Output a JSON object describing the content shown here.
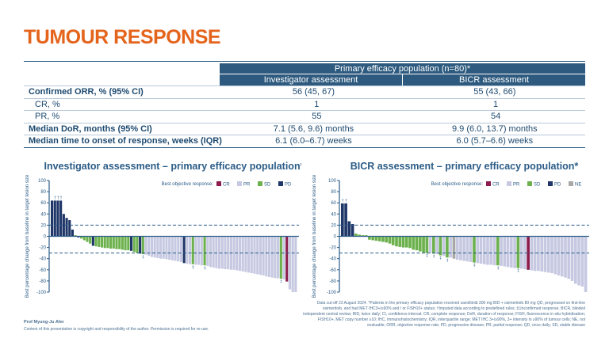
{
  "title": "TUMOUR RESPONSE",
  "table": {
    "group_header": "Primary efficacy population (n=80)*",
    "columns": [
      "Investigator assessment",
      "BICR assessment"
    ],
    "rows": [
      {
        "label": "Confirmed ORR, % (95% CI)",
        "sub": false,
        "values": [
          "56 (45, 67)",
          "55 (43, 66)"
        ]
      },
      {
        "label": "CR, %",
        "sub": true,
        "values": [
          "1",
          "1"
        ]
      },
      {
        "label": "PR, %",
        "sub": true,
        "values": [
          "55",
          "54"
        ]
      },
      {
        "label": "Median DoR, months (95% CI)",
        "sub": false,
        "values": [
          "7.1 (5.6, 9.6) months",
          "9.9 (6.0, 13.7) months"
        ]
      },
      {
        "label": "Median time to onset of response, weeks (IQR)",
        "sub": false,
        "values": [
          "6.1 (6.0–6.7) weeks",
          "6.0 (5.7–6.6) weeks"
        ]
      }
    ]
  },
  "colors": {
    "CR": "#8b1c4b",
    "PR": "#c6c9e1",
    "SD": "#6cb14d",
    "PD": "#1f3668",
    "NE": "#a8a8a8",
    "title": "#e4641c"
  },
  "chart_data": [
    {
      "type": "bar",
      "title": "Investigator assessment – primary efficacy population*",
      "ylabel": "Best percentage change from baseline in target lesion size",
      "ylim": [
        -100,
        100
      ],
      "yticks": [
        100,
        80,
        60,
        40,
        20,
        0,
        -20,
        -40,
        -60,
        -80,
        -100
      ],
      "reference_lines": [
        20,
        -30
      ],
      "legend_title": "Best objective response:",
      "legend": [
        "CR",
        "PR",
        "SD",
        "PD"
      ],
      "legend_placement": "top-right",
      "values": [
        64,
        64,
        64,
        64,
        40,
        33,
        29,
        12,
        2,
        -2,
        -4,
        -7,
        -10,
        -13,
        -17,
        -18,
        -19,
        -20,
        -21,
        -21,
        -22,
        -22,
        -23,
        -23,
        -24,
        -25,
        -25,
        -26,
        -28,
        -30,
        -31,
        -32,
        -33,
        -35,
        -37,
        -38,
        -39,
        -40,
        -40,
        -41,
        -42,
        -43,
        -44,
        -45,
        -46,
        -48,
        -49,
        -50,
        -50,
        -51,
        -51,
        -52,
        -52,
        -53,
        -55,
        -56,
        -57,
        -58,
        -58,
        -59,
        -59,
        -60,
        -60,
        -61,
        -62,
        -63,
        -64,
        -65,
        -66,
        -67,
        -68,
        -69,
        -70,
        -72,
        -73,
        -74,
        -75,
        -75,
        -76,
        -77,
        -81,
        -95,
        -100,
        -100
      ],
      "responses": [
        "PD",
        "PD",
        "PD",
        "PD",
        "PD",
        "PD",
        "PD",
        "PD",
        "SD",
        "PD",
        "SD",
        "SD",
        "SD",
        "SD",
        "PD",
        "SD",
        "SD",
        "SD",
        "SD",
        "SD",
        "SD",
        "SD",
        "SD",
        "SD",
        "SD",
        "SD",
        "SD",
        "PD",
        "SD",
        "SD",
        "PD",
        "SD",
        "PR",
        "PR",
        "PR",
        "PR",
        "PR",
        "PR",
        "PR",
        "PR",
        "PR",
        "PR",
        "PR",
        "PR",
        "PR",
        "PD",
        "PR",
        "PR",
        "SD",
        "PR",
        "PR",
        "PR",
        "SD",
        "PR",
        "PR",
        "PR",
        "PR",
        "PR",
        "PR",
        "PR",
        "PR",
        "PR",
        "PR",
        "PR",
        "PR",
        "PR",
        "PR",
        "PR",
        "PR",
        "PR",
        "PR",
        "PR",
        "PR",
        "PR",
        "PR",
        "PR",
        "PR",
        "PR",
        "SD",
        "PR",
        "CR",
        "PR",
        "PR",
        "PR"
      ],
      "annotations": [
        {
          "index": 1,
          "mark": "†"
        },
        {
          "index": 2,
          "mark": "†"
        },
        {
          "index": 3,
          "mark": "†"
        },
        {
          "index": 31,
          "mark": "‡"
        },
        {
          "index": 48,
          "mark": "‡"
        },
        {
          "index": 52,
          "mark": "‡"
        },
        {
          "index": 78,
          "mark": "‡"
        }
      ]
    },
    {
      "type": "bar",
      "title": "BICR assessment – primary efficacy population*",
      "ylabel": "Best percentage change from baseline in target lesion size",
      "ylim": [
        -100,
        100
      ],
      "yticks": [
        100,
        80,
        60,
        40,
        20,
        0,
        -20,
        -40,
        -60,
        -80,
        -100
      ],
      "reference_lines": [
        20,
        -30
      ],
      "legend_title": "Best objective response:",
      "legend": [
        "CR",
        "PR",
        "SD",
        "PD",
        "NE"
      ],
      "legend_placement": "top-right",
      "values": [
        59,
        59,
        27,
        22,
        5,
        3,
        2,
        2,
        -6,
        -7,
        -8,
        -9,
        -10,
        -11,
        -13,
        -16,
        -18,
        -19,
        -20,
        -20,
        -21,
        -24,
        -25,
        -27,
        -29,
        -30,
        -30,
        -31,
        -32,
        -34,
        -35,
        -38,
        -38,
        -40,
        -42,
        -43,
        -44,
        -45,
        -46,
        -47,
        -48,
        -49,
        -50,
        -51,
        -51,
        -52,
        -52,
        -53,
        -54,
        -55,
        -56,
        -57,
        -57,
        -58,
        -59,
        -60,
        -61,
        -62,
        -62,
        -63,
        -64,
        -65,
        -66,
        -68,
        -70,
        -72,
        -74,
        -76,
        -80,
        -85,
        -88,
        -90,
        -100
      ],
      "responses": [
        "PD",
        "PD",
        "PD",
        "PD",
        "SD",
        "SD",
        "SD",
        "SD",
        "SD",
        "SD",
        "SD",
        "SD",
        "SD",
        "SD",
        "SD",
        "SD",
        "SD",
        "SD",
        "SD",
        "SD",
        "SD",
        "SD",
        "SD",
        "SD",
        "SD",
        "SD",
        "PR",
        "SD",
        "PR",
        "SD",
        "PR",
        "SD",
        "PR",
        "NE",
        "PR",
        "PR",
        "PR",
        "PR",
        "PR",
        "SD",
        "PR",
        "PR",
        "PR",
        "PR",
        "PR",
        "PR",
        "SD",
        "PR",
        "PR",
        "PR",
        "PR",
        "PR",
        "SD",
        "PR",
        "PR",
        "CR",
        "PR",
        "PR",
        "PR",
        "PR",
        "PR",
        "PR",
        "PR",
        "PR",
        "PR",
        "PR",
        "PR",
        "PR",
        "PR",
        "PR",
        "PR",
        "PR",
        "PR"
      ],
      "annotations": [
        {
          "index": 0,
          "mark": "†"
        },
        {
          "index": 1,
          "mark": "†"
        },
        {
          "index": 25,
          "mark": "‡"
        },
        {
          "index": 27,
          "mark": "‡"
        },
        {
          "index": 29,
          "mark": "‡"
        },
        {
          "index": 31,
          "mark": "‡"
        },
        {
          "index": 39,
          "mark": "‡"
        },
        {
          "index": 46,
          "mark": "‡"
        },
        {
          "index": 52,
          "mark": "‡"
        }
      ]
    }
  ],
  "footnote": "Data cut-off 23 August 2024. *Patients in the primary efficacy population received savolitinib 300 mg BID + osimertinib 80 mg QD, progressed on first-line osimertinib, and had MET IHC3+/≥90% and / or FISH10+ status; †Imputed data according to predefined rules; ‡Unconfirmed response. BICR, blinded independent central review; BID, twice daily; CI, confidence interval; CR, complete response; DoR, duration of response; FISH, fluorescence in situ hybridisation; FISH10+, MET copy number ≥10; IHC, immunohistochemistry; IQR, interquartile range; MET IHC 3+/≥90%, 3+ intensity in ≥90% of tumour cells; NE, not evaluable; ORR, objective response rate; PD, progressive disease; PR, partial response; QD, once daily; SD, stable disease",
  "author": "Prof Myung-Ju Ahn",
  "copyright": "Content of this presentation is copyright and responsibility of the author. Permission is required for re-use."
}
